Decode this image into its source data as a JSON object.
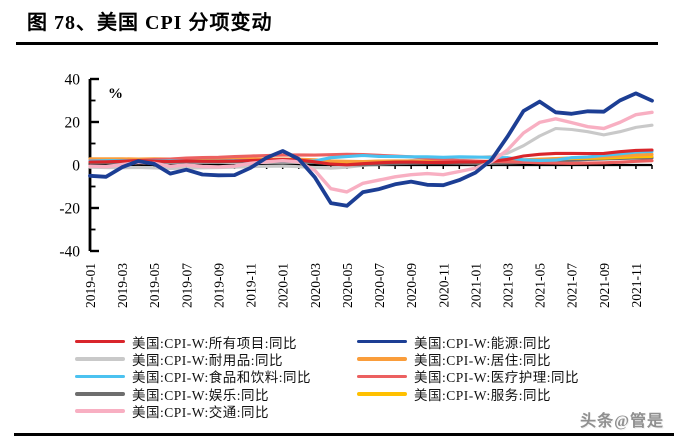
{
  "figure": {
    "title": "图 78、美国 CPI 分项变动",
    "watermark": "头条@管是"
  },
  "chart_data": {
    "type": "line",
    "unit_label": "%",
    "ylim": [
      -40,
      40
    ],
    "yticks": [
      40,
      20,
      0,
      -20,
      -40
    ],
    "yticks_minor": [
      30,
      10,
      -10,
      -30
    ],
    "grid": false,
    "x": [
      "2019-01",
      "2019-02",
      "2019-03",
      "2019-04",
      "2019-05",
      "2019-06",
      "2019-07",
      "2019-08",
      "2019-09",
      "2019-10",
      "2019-11",
      "2019-12",
      "2020-01",
      "2020-02",
      "2020-03",
      "2020-04",
      "2020-05",
      "2020-06",
      "2020-07",
      "2020-08",
      "2020-09",
      "2020-10",
      "2020-11",
      "2020-12",
      "2021-01",
      "2021-02",
      "2021-03",
      "2021-04",
      "2021-05",
      "2021-06",
      "2021-07",
      "2021-08",
      "2021-09",
      "2021-10",
      "2021-11",
      "2021-12"
    ],
    "x_tick_labels": [
      "2019-01",
      "2019-03",
      "2019-05",
      "2019-07",
      "2019-09",
      "2019-11",
      "2020-01",
      "2020-03",
      "2020-05",
      "2020-07",
      "2020-09",
      "2020-11",
      "2021-01",
      "2021-03",
      "2021-05",
      "2021-07",
      "2021-09",
      "2021-11"
    ],
    "legend": {
      "position": "bottom",
      "columns": [
        [
          0,
          2,
          4,
          6,
          8
        ],
        [
          1,
          3,
          5,
          7
        ]
      ]
    },
    "series": [
      {
        "name": "美国:CPI-W:所有项目:同比",
        "color": "#D9252B",
        "values": [
          1.4,
          1.5,
          1.7,
          2.1,
          1.8,
          1.6,
          1.8,
          1.7,
          1.7,
          1.8,
          2.1,
          2.3,
          2.5,
          2.3,
          1.5,
          0.4,
          0.1,
          0.6,
          1.0,
          1.3,
          1.4,
          1.2,
          1.1,
          1.4,
          1.4,
          1.7,
          2.6,
          4.2,
          5.0,
          5.4,
          5.4,
          5.3,
          5.4,
          6.2,
          6.8,
          7.0
        ]
      },
      {
        "name": "美国:CPI-W:能源:同比",
        "color": "#1C3E94",
        "values": [
          -5.0,
          -5.5,
          -1.0,
          1.8,
          0.5,
          -4.0,
          -2.2,
          -4.4,
          -4.8,
          -4.7,
          -1.3,
          3.4,
          6.5,
          2.8,
          -5.7,
          -17.7,
          -19.0,
          -12.6,
          -11.2,
          -9.0,
          -7.7,
          -9.2,
          -9.4,
          -7.0,
          -3.6,
          2.4,
          13.2,
          25.1,
          29.5,
          24.5,
          23.8,
          25.0,
          24.8,
          30.0,
          33.3,
          29.9
        ]
      },
      {
        "name": "美国:CPI-W:耐用品:同比",
        "color": "#C9C9C9",
        "values": [
          -1.0,
          -1.2,
          -1.3,
          -1.1,
          -1.4,
          -1.6,
          -1.5,
          -1.3,
          -1.2,
          -1.0,
          -0.8,
          -0.6,
          -0.5,
          -0.8,
          -1.2,
          -1.5,
          -1.0,
          -0.2,
          0.5,
          1.2,
          2.0,
          2.8,
          3.0,
          3.2,
          3.5,
          4.0,
          5.5,
          9.0,
          13.5,
          17.0,
          16.5,
          15.5,
          14.0,
          15.5,
          17.5,
          18.5
        ]
      },
      {
        "name": "美国:CPI-W:居住:同比",
        "color": "#FA9D3B",
        "values": [
          2.9,
          2.9,
          2.9,
          2.8,
          2.9,
          2.8,
          2.9,
          2.9,
          2.8,
          2.8,
          2.9,
          2.8,
          2.8,
          2.7,
          2.4,
          1.9,
          1.7,
          1.6,
          1.8,
          1.9,
          1.9,
          1.8,
          1.7,
          1.7,
          1.6,
          1.7,
          2.0,
          2.4,
          2.7,
          3.0,
          3.3,
          3.5,
          3.8,
          4.2,
          4.6,
          5.0
        ]
      },
      {
        "name": "美国:CPI-W:食品和饮料:同比",
        "color": "#4BC2F0",
        "values": [
          1.8,
          2.0,
          2.0,
          1.9,
          2.0,
          1.9,
          1.8,
          1.7,
          1.8,
          2.0,
          2.0,
          1.8,
          1.8,
          1.8,
          1.9,
          3.4,
          3.9,
          4.4,
          4.0,
          3.9,
          3.8,
          3.8,
          3.6,
          3.8,
          3.7,
          3.5,
          3.4,
          2.4,
          2.1,
          2.3,
          3.4,
          3.7,
          4.5,
          5.2,
          6.0,
          6.3
        ]
      },
      {
        "name": "美国:CPI-W:医疗护理:同比",
        "color": "#EC6060",
        "values": [
          2.0,
          1.8,
          1.9,
          2.1,
          2.5,
          2.8,
          3.2,
          3.5,
          3.6,
          3.9,
          4.2,
          4.4,
          4.6,
          4.7,
          4.6,
          4.8,
          5.0,
          4.9,
          4.5,
          4.2,
          3.8,
          3.2,
          2.6,
          2.1,
          1.8,
          1.6,
          1.5,
          1.3,
          1.0,
          0.9,
          0.8,
          0.9,
          1.0,
          1.3,
          1.7,
          2.0
        ]
      },
      {
        "name": "美国:CPI-W:娱乐:同比",
        "color": "#6E6E6E",
        "values": [
          1.2,
          1.0,
          1.1,
          1.3,
          1.2,
          1.5,
          1.3,
          1.5,
          1.4,
          1.6,
          1.5,
          1.4,
          1.5,
          1.4,
          1.2,
          0.5,
          0.2,
          0.1,
          0.3,
          0.6,
          0.8,
          0.9,
          0.9,
          0.8,
          0.6,
          0.7,
          0.9,
          1.2,
          1.5,
          1.9,
          2.2,
          2.6,
          2.8,
          3.0,
          3.2,
          3.3
        ]
      },
      {
        "name": "美国:CPI-W:服务:同比",
        "color": "#FFC000",
        "values": [
          2.6,
          2.7,
          2.8,
          2.8,
          2.7,
          2.7,
          2.8,
          2.7,
          2.7,
          2.6,
          2.6,
          2.6,
          2.6,
          2.5,
          2.1,
          1.6,
          1.4,
          1.5,
          1.7,
          1.8,
          1.8,
          1.7,
          1.6,
          1.6,
          1.5,
          1.6,
          1.8,
          2.2,
          2.6,
          2.9,
          3.0,
          3.1,
          3.2,
          3.5,
          3.8,
          4.0
        ]
      },
      {
        "name": "美国:CPI-W:交通:同比",
        "color": "#F8AFC2",
        "values": [
          -0.5,
          -0.8,
          0.2,
          1.2,
          0.8,
          -0.6,
          0.0,
          -0.7,
          -0.9,
          -0.5,
          0.8,
          1.5,
          2.0,
          1.5,
          -2.5,
          -11.0,
          -12.5,
          -8.5,
          -7.0,
          -5.5,
          -4.5,
          -4.0,
          -4.5,
          -3.0,
          -1.5,
          1.5,
          7.0,
          14.9,
          19.8,
          21.5,
          19.7,
          17.8,
          17.0,
          19.8,
          23.4,
          24.5
        ]
      }
    ]
  }
}
